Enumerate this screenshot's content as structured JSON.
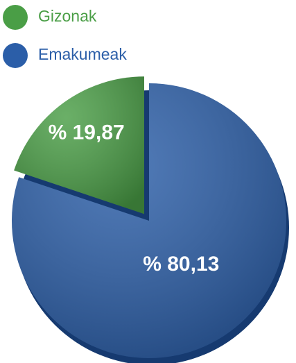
{
  "chart_data": {
    "type": "pie",
    "categories": [
      "Gizonak",
      "Emakumeak"
    ],
    "values": [
      19.87,
      80.13
    ],
    "value_labels": [
      "% 19,87",
      "% 80,13"
    ],
    "colors": [
      "#4a9e46",
      "#2b5ea8"
    ]
  }
}
